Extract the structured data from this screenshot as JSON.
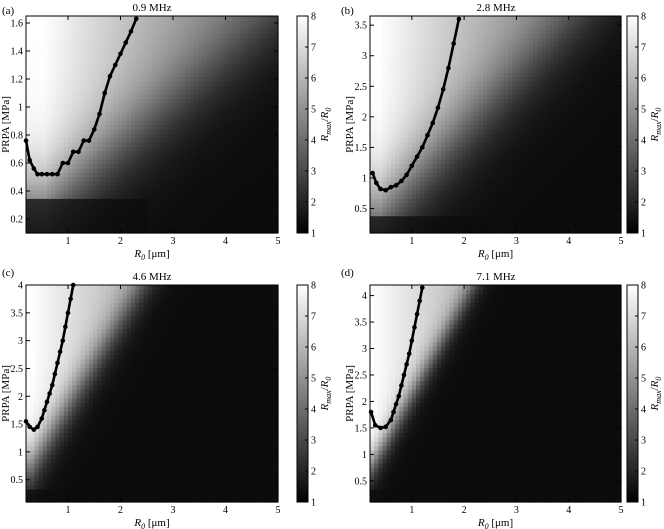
{
  "chart_data": [
    {
      "type": "heatmap",
      "panel_label": "(a)",
      "title": "0.9 MHz",
      "xlabel_sym": "R",
      "xlabel_sub": "0",
      "xlabel_unit": " [μm]",
      "ylabel": "PRPA [MPa]",
      "colorbar_label": "R max /R 0",
      "xlim": [
        0.2,
        5
      ],
      "ylim": [
        0.1,
        1.65
      ],
      "x_ticks": [
        1,
        2,
        3,
        4,
        5
      ],
      "y_ticks": [
        0.2,
        0.4,
        0.6,
        0.8,
        1,
        1.2,
        1.4,
        1.6
      ],
      "y_tick_labels": [
        "0.2",
        "0.4",
        "0.6",
        "0.8",
        "1",
        "1.2",
        "1.4",
        "1.6"
      ],
      "colorbar_ticks": [
        1,
        2,
        3,
        4,
        5,
        6,
        7,
        8
      ],
      "colorbar_range": [
        1,
        8
      ],
      "field": {
        "min_level": 1.0,
        "ridge_x": 0.55,
        "ridge_y": 0.58,
        "spread": 1.0,
        "slope": 0.55
      },
      "threshold_curve": {
        "x": [
          0.2,
          0.27,
          0.35,
          0.42,
          0.5,
          0.6,
          0.7,
          0.8,
          0.9,
          1.0,
          1.1,
          1.2,
          1.3,
          1.4,
          1.5,
          1.6,
          1.7,
          1.8,
          1.9,
          2.0,
          2.1,
          2.2,
          2.3
        ],
        "y": [
          0.76,
          0.62,
          0.56,
          0.52,
          0.52,
          0.52,
          0.52,
          0.52,
          0.6,
          0.6,
          0.68,
          0.68,
          0.76,
          0.76,
          0.84,
          0.95,
          1.1,
          1.22,
          1.3,
          1.38,
          1.46,
          1.54,
          1.63
        ]
      }
    },
    {
      "type": "heatmap",
      "panel_label": "(b)",
      "title": "2.8 MHz",
      "xlabel_sym": "R",
      "xlabel_sub": "0",
      "xlabel_unit": " [μm]",
      "ylabel": "PRPA [MPa]",
      "colorbar_label": "R max /R 0",
      "xlim": [
        0.2,
        5
      ],
      "ylim": [
        0.1,
        3.65
      ],
      "x_ticks": [
        1,
        2,
        3,
        4,
        5
      ],
      "y_ticks": [
        0.5,
        1,
        1.5,
        2,
        2.5,
        3,
        3.5
      ],
      "y_tick_labels": [
        "0.5",
        "1",
        "1.5",
        "2",
        "2.5",
        "3",
        "3.5"
      ],
      "colorbar_ticks": [
        1,
        2,
        3,
        4,
        5,
        6,
        7,
        8
      ],
      "colorbar_range": [
        1,
        8
      ],
      "field": {
        "min_level": 1.0,
        "ridge_x": 0.4,
        "ridge_y": 0.85,
        "spread": 2.2,
        "slope": 1.55
      },
      "threshold_curve": {
        "x": [
          0.25,
          0.32,
          0.4,
          0.5,
          0.6,
          0.7,
          0.8,
          0.9,
          1.0,
          1.1,
          1.2,
          1.3,
          1.4,
          1.5,
          1.6,
          1.7,
          1.8,
          1.9
        ],
        "y": [
          1.08,
          0.92,
          0.82,
          0.8,
          0.85,
          0.88,
          0.95,
          1.05,
          1.2,
          1.35,
          1.5,
          1.7,
          1.9,
          2.15,
          2.45,
          2.8,
          3.2,
          3.6
        ]
      }
    },
    {
      "type": "heatmap",
      "panel_label": "(c)",
      "title": "4.6 MHz",
      "xlabel_sym": "R",
      "xlabel_sub": "0",
      "xlabel_unit": " [μm]",
      "ylabel": "PRPA [MPa]",
      "colorbar_label": "R max /R 0",
      "xlim": [
        0.2,
        5
      ],
      "ylim": [
        0.1,
        4.0
      ],
      "x_ticks": [
        1,
        2,
        3,
        4,
        5
      ],
      "y_ticks": [
        0.5,
        1,
        1.5,
        2,
        2.5,
        3,
        3.5,
        4
      ],
      "y_tick_labels": [
        "0.5",
        "1",
        "1.5",
        "2",
        "2.5",
        "3",
        "3.5",
        "4"
      ],
      "colorbar_ticks": [
        1,
        2,
        3,
        4,
        5,
        6,
        7,
        8
      ],
      "colorbar_range": [
        1,
        8
      ],
      "field": {
        "min_level": 1.0,
        "ridge_x": 0.3,
        "ridge_y": 1.4,
        "spread": 1.4,
        "slope": 2.8
      },
      "threshold_curve": {
        "x": [
          0.2,
          0.27,
          0.35,
          0.42,
          0.5,
          0.55,
          0.6,
          0.65,
          0.7,
          0.75,
          0.8,
          0.85,
          0.9,
          0.95,
          1.0,
          1.05,
          1.1
        ],
        "y": [
          1.55,
          1.45,
          1.4,
          1.45,
          1.6,
          1.75,
          1.9,
          2.05,
          2.2,
          2.4,
          2.6,
          2.8,
          3.0,
          3.25,
          3.5,
          3.75,
          4.0
        ]
      }
    },
    {
      "type": "heatmap",
      "panel_label": "(d)",
      "title": "7.1 MHz",
      "xlabel_sym": "R",
      "xlabel_sub": "0",
      "xlabel_unit": " [μm]",
      "ylabel": "PRPA [MPa]",
      "colorbar_label": "R max /R 0",
      "xlim": [
        0.2,
        5
      ],
      "ylim": [
        0.1,
        4.2
      ],
      "x_ticks": [
        1,
        2,
        3,
        4,
        5
      ],
      "y_ticks": [
        0.5,
        1,
        1.5,
        2,
        2.5,
        3,
        3.5,
        4
      ],
      "y_tick_labels": [
        "0.5",
        "1",
        "1.5",
        "2",
        "2.5",
        "3",
        "3.5",
        "4"
      ],
      "colorbar_ticks": [
        1,
        2,
        3,
        4,
        5,
        6,
        7,
        8
      ],
      "colorbar_range": [
        1,
        8
      ],
      "field": {
        "min_level": 1.0,
        "ridge_x": 0.25,
        "ridge_y": 1.5,
        "spread": 1.1,
        "slope": 3.2
      },
      "threshold_curve": {
        "x": [
          0.22,
          0.3,
          0.4,
          0.5,
          0.6,
          0.65,
          0.7,
          0.75,
          0.8,
          0.85,
          0.9,
          0.95,
          1.0,
          1.05,
          1.1,
          1.15,
          1.2
        ],
        "y": [
          1.8,
          1.55,
          1.5,
          1.52,
          1.65,
          1.8,
          1.95,
          2.1,
          2.3,
          2.5,
          2.7,
          2.9,
          3.15,
          3.4,
          3.65,
          3.9,
          4.15
        ]
      }
    }
  ]
}
